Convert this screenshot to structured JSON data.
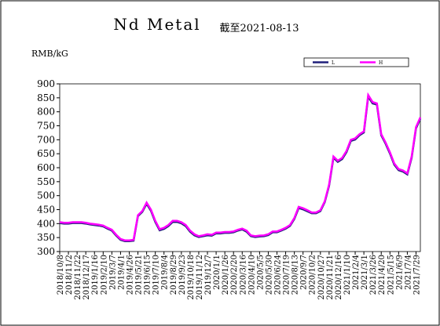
{
  "chart_data": {
    "type": "line",
    "title": "Nd Metal",
    "subtitle": "截至2021-08-13",
    "y_label": "RMB/kG",
    "categories": [
      "2018/10/8",
      null,
      "2018/11/2",
      null,
      "2018/11/22",
      null,
      "2018/12/17",
      null,
      "2019/1/16",
      null,
      "2019/2/10",
      null,
      "2019/3/7",
      null,
      "2019/4/1",
      null,
      "2019/4/26",
      null,
      "2019/5/21",
      null,
      "2019/6/15",
      null,
      "2019/7/10",
      null,
      "2019/8/4",
      null,
      "2019/8/29",
      null,
      "2019/9/23",
      null,
      "2019/10/18",
      null,
      "2019/11/12",
      null,
      "2019/12/7",
      null,
      "2020/1/1",
      null,
      "2020/1/26",
      null,
      "2020/2/20",
      null,
      "2020/3/16",
      null,
      "2020/4/10",
      null,
      "2020/5/5",
      null,
      "2020/5/30",
      null,
      "2020/6/24",
      null,
      "2020/7/19",
      null,
      "2020/8/13",
      null,
      "2020/9/7",
      null,
      "2020/10/2",
      null,
      "2020/10/27",
      null,
      "2020/11/21",
      null,
      "2020/12/16",
      null,
      "2021/1/10",
      null,
      "2021/2/4",
      null,
      "2021/3/1",
      null,
      "2021/3/26",
      null,
      "2021/4/20",
      null,
      "2021/5/15",
      null,
      "2021/6/9",
      null,
      "2021/7/4",
      null,
      "2021/7/29",
      null
    ],
    "series": [
      {
        "name": "L",
        "color": "#1f1f7a",
        "values": [
          402,
          400,
          400,
          402,
          402,
          402,
          400,
          397,
          395,
          393,
          390,
          382,
          375,
          357,
          342,
          337,
          337,
          339,
          427,
          442,
          471,
          446,
          406,
          376,
          381,
          391,
          406,
          406,
          401,
          391,
          371,
          358,
          352,
          355,
          358,
          357,
          365,
          365,
          367,
          367,
          369,
          375,
          379,
          371,
          355,
          352,
          354,
          355,
          359,
          369,
          369,
          375,
          382,
          392,
          417,
          456,
          451,
          444,
          437,
          437,
          445,
          477,
          536,
          636,
          621,
          631,
          656,
          696,
          701,
          716,
          726,
          855,
          830,
          826,
          716,
          686,
          651,
          611,
          591,
          586,
          576,
          636,
          741,
          776
        ]
      },
      {
        "name": "H",
        "color": "#ff00ff",
        "values": [
          405,
          403,
          403,
          405,
          405,
          405,
          403,
          400,
          398,
          396,
          393,
          385,
          378,
          360,
          345,
          340,
          340,
          342,
          430,
          445,
          475,
          450,
          410,
          380,
          385,
          395,
          410,
          410,
          405,
          395,
          375,
          362,
          355,
          358,
          362,
          360,
          368,
          368,
          370,
          370,
          372,
          378,
          382,
          375,
          358,
          355,
          357,
          358,
          362,
          372,
          372,
          378,
          385,
          395,
          420,
          460,
          455,
          448,
          440,
          440,
          448,
          480,
          540,
          640,
          625,
          635,
          660,
          700,
          705,
          720,
          730,
          860,
          835,
          830,
          720,
          690,
          655,
          615,
          595,
          590,
          580,
          640,
          745,
          780
        ]
      }
    ],
    "ylim": [
      300,
      900
    ],
    "yticks": [
      300,
      350,
      400,
      450,
      500,
      550,
      600,
      650,
      700,
      750,
      800,
      850,
      900
    ]
  }
}
